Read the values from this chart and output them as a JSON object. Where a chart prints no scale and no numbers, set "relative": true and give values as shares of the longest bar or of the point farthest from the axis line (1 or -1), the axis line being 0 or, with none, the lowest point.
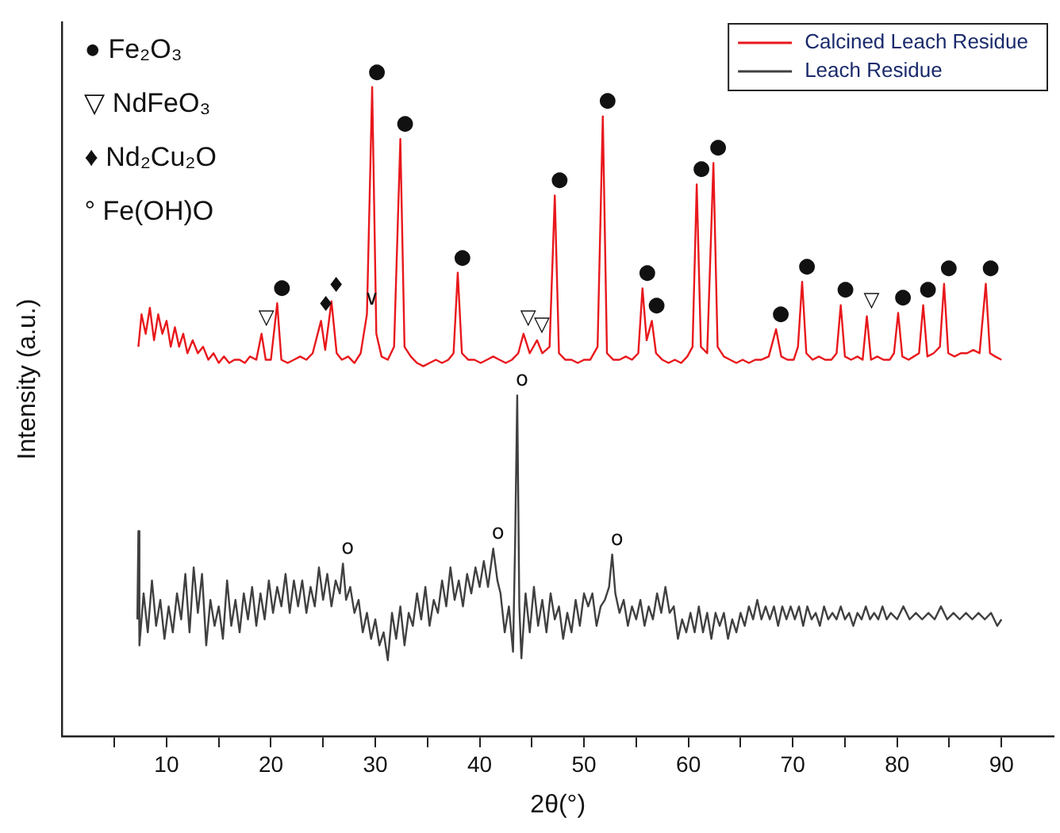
{
  "chart_data": {
    "type": "line",
    "xlabel": "2θ(°)",
    "ylabel": "Intensity (a.u.)",
    "relative": true,
    "xlim": [
      0,
      95
    ],
    "xticks": [
      {
        "value": 5,
        "label": null
      },
      10,
      {
        "value": 15,
        "label": null
      },
      20,
      {
        "value": 25,
        "label": null
      },
      30,
      {
        "value": 35,
        "label": null
      },
      40,
      {
        "value": 45,
        "label": null
      },
      50,
      {
        "value": 55,
        "label": null
      },
      60,
      {
        "value": 65,
        "label": null
      },
      70,
      {
        "value": 75,
        "label": null
      },
      80,
      {
        "value": 85,
        "label": null
      },
      90
    ],
    "legend": "top right",
    "grid": false,
    "marker": "none",
    "line_style": "solid",
    "series": [
      {
        "name": "Calcined Leach Residue",
        "color": "#e8181c",
        "x": [
          7.3,
          7.6,
          8.0,
          8.4,
          8.8,
          9.2,
          9.6,
          10.0,
          10.4,
          10.8,
          11.2,
          11.6,
          12.0,
          12.5,
          13.0,
          13.5,
          14.0,
          14.5,
          15.0,
          15.5,
          16.0,
          16.5,
          17.0,
          17.5,
          18.0,
          18.6,
          19.1,
          19.5,
          20.0,
          20.6,
          21.0,
          21.6,
          22.2,
          22.8,
          23.4,
          24.0,
          24.8,
          25.2,
          25.8,
          26.3,
          26.8,
          27.4,
          28.0,
          28.6,
          29.2,
          29.7,
          30.1,
          30.6,
          31.2,
          31.8,
          32.4,
          32.8,
          33.4,
          34.0,
          34.6,
          35.2,
          35.8,
          36.4,
          37.0,
          37.5,
          37.9,
          38.3,
          38.9,
          39.5,
          40.1,
          40.7,
          41.3,
          41.9,
          42.5,
          43.1,
          43.7,
          44.2,
          44.8,
          45.5,
          46.0,
          46.7,
          47.2,
          47.6,
          48.2,
          48.8,
          49.4,
          50.0,
          50.6,
          51.3,
          51.8,
          52.2,
          52.8,
          53.4,
          54.0,
          54.6,
          55.2,
          55.6,
          56.0,
          56.5,
          56.9,
          57.5,
          58.1,
          58.7,
          59.3,
          59.9,
          60.4,
          60.8,
          61.2,
          61.8,
          62.4,
          62.8,
          63.4,
          64.0,
          64.6,
          65.2,
          65.8,
          66.4,
          67.0,
          67.7,
          68.4,
          68.9,
          69.5,
          70.1,
          70.5,
          70.9,
          71.3,
          71.9,
          72.5,
          73.1,
          73.7,
          74.2,
          74.6,
          75.0,
          75.6,
          76.2,
          76.7,
          77.1,
          77.5,
          78.1,
          78.7,
          79.3,
          79.7,
          80.1,
          80.5,
          81.1,
          81.6,
          82.1,
          82.5,
          82.9,
          83.5,
          84.1,
          84.5,
          84.9,
          85.5,
          86.1,
          86.7,
          87.3,
          87.9,
          88.5,
          88.9,
          89.4,
          90.0
        ],
        "values": [
          0.6,
          0.65,
          0.62,
          0.66,
          0.61,
          0.65,
          0.62,
          0.64,
          0.6,
          0.63,
          0.6,
          0.62,
          0.59,
          0.61,
          0.59,
          0.6,
          0.58,
          0.59,
          0.575,
          0.585,
          0.575,
          0.58,
          0.58,
          0.575,
          0.585,
          0.58,
          0.62,
          0.58,
          0.58,
          0.667,
          0.58,
          0.575,
          0.58,
          0.585,
          0.58,
          0.59,
          0.64,
          0.595,
          0.67,
          0.59,
          0.58,
          0.585,
          0.575,
          0.59,
          0.65,
          1.0,
          0.62,
          0.585,
          0.58,
          0.6,
          0.92,
          0.6,
          0.585,
          0.575,
          0.57,
          0.575,
          0.58,
          0.575,
          0.58,
          0.59,
          0.714,
          0.59,
          0.58,
          0.58,
          0.575,
          0.58,
          0.585,
          0.58,
          0.575,
          0.58,
          0.59,
          0.62,
          0.59,
          0.61,
          0.59,
          0.6,
          0.833,
          0.59,
          0.58,
          0.58,
          0.575,
          0.58,
          0.58,
          0.6,
          0.955,
          0.59,
          0.58,
          0.58,
          0.585,
          0.58,
          0.59,
          0.69,
          0.61,
          0.64,
          0.59,
          0.58,
          0.575,
          0.58,
          0.575,
          0.585,
          0.6,
          0.85,
          0.6,
          0.59,
          0.883,
          0.6,
          0.585,
          0.58,
          0.575,
          0.58,
          0.575,
          0.58,
          0.58,
          0.585,
          0.627,
          0.585,
          0.58,
          0.58,
          0.6,
          0.7,
          0.59,
          0.58,
          0.585,
          0.58,
          0.58,
          0.59,
          0.664,
          0.585,
          0.58,
          0.585,
          0.58,
          0.647,
          0.58,
          0.585,
          0.58,
          0.58,
          0.59,
          0.652,
          0.585,
          0.58,
          0.585,
          0.59,
          0.664,
          0.585,
          0.59,
          0.6,
          0.697,
          0.59,
          0.585,
          0.59,
          0.59,
          0.595,
          0.59,
          0.697,
          0.59,
          0.585,
          0.58
        ]
      },
      {
        "name": "Leach Residue",
        "color": "#404040",
        "x": [
          7.2,
          7.3,
          7.4,
          7.8,
          8.2,
          8.6,
          9.0,
          9.4,
          9.8,
          10.2,
          10.6,
          11.0,
          11.4,
          11.8,
          12.2,
          12.6,
          13.0,
          13.4,
          13.8,
          14.2,
          14.6,
          15.0,
          15.4,
          15.8,
          16.2,
          16.6,
          17.0,
          17.4,
          17.8,
          18.2,
          18.6,
          19.0,
          19.4,
          19.8,
          20.2,
          20.6,
          21.0,
          21.4,
          21.8,
          22.2,
          22.6,
          23.0,
          23.4,
          23.8,
          24.2,
          24.6,
          25.0,
          25.4,
          25.8,
          26.2,
          26.6,
          26.9,
          27.2,
          27.6,
          28.0,
          28.4,
          28.8,
          29.2,
          29.6,
          30.0,
          30.4,
          30.8,
          31.2,
          31.6,
          32.0,
          32.4,
          32.8,
          33.2,
          33.6,
          34.0,
          34.4,
          34.8,
          35.2,
          35.6,
          36.0,
          36.4,
          36.8,
          37.2,
          37.6,
          38.0,
          38.4,
          38.8,
          39.2,
          39.6,
          40.0,
          40.4,
          40.8,
          41.3,
          41.7,
          42.0,
          42.4,
          42.8,
          43.2,
          43.4,
          43.6,
          43.8,
          44.0,
          44.4,
          44.8,
          45.2,
          45.6,
          46.0,
          46.4,
          46.8,
          47.2,
          47.6,
          48.0,
          48.4,
          48.8,
          49.2,
          49.6,
          50.0,
          50.4,
          50.8,
          51.2,
          51.6,
          52.0,
          52.4,
          52.7,
          53.0,
          53.4,
          53.8,
          54.2,
          54.6,
          55.0,
          55.4,
          55.8,
          56.2,
          56.6,
          57.0,
          57.4,
          57.8,
          58.2,
          58.6,
          59.0,
          59.4,
          59.8,
          60.2,
          60.6,
          61.0,
          61.4,
          61.8,
          62.2,
          62.6,
          63.0,
          63.4,
          63.8,
          64.2,
          64.6,
          65.0,
          65.4,
          65.8,
          66.2,
          66.6,
          67.0,
          67.4,
          67.8,
          68.2,
          68.6,
          69.0,
          69.4,
          69.8,
          70.2,
          70.6,
          71.0,
          71.4,
          71.8,
          72.2,
          72.6,
          73.0,
          73.4,
          73.8,
          74.2,
          74.6,
          75.0,
          75.4,
          75.8,
          76.2,
          76.6,
          77.0,
          77.4,
          77.8,
          78.2,
          78.6,
          79.0,
          79.4,
          80.0,
          80.6,
          81.2,
          81.8,
          82.4,
          83.0,
          83.6,
          84.2,
          84.8,
          85.4,
          86.0,
          86.6,
          87.2,
          87.8,
          88.4,
          89.0,
          89.6,
          90.0
        ],
        "values": [
          0.18,
          0.316,
          0.14,
          0.22,
          0.16,
          0.24,
          0.17,
          0.21,
          0.15,
          0.2,
          0.16,
          0.22,
          0.18,
          0.25,
          0.16,
          0.26,
          0.19,
          0.25,
          0.14,
          0.21,
          0.17,
          0.2,
          0.15,
          0.24,
          0.17,
          0.21,
          0.16,
          0.22,
          0.18,
          0.23,
          0.17,
          0.22,
          0.18,
          0.24,
          0.19,
          0.23,
          0.2,
          0.25,
          0.19,
          0.24,
          0.2,
          0.24,
          0.19,
          0.23,
          0.2,
          0.26,
          0.21,
          0.25,
          0.2,
          0.24,
          0.22,
          0.266,
          0.21,
          0.23,
          0.19,
          0.21,
          0.16,
          0.19,
          0.15,
          0.18,
          0.14,
          0.16,
          0.117,
          0.19,
          0.15,
          0.2,
          0.14,
          0.19,
          0.17,
          0.22,
          0.18,
          0.23,
          0.17,
          0.21,
          0.19,
          0.24,
          0.2,
          0.26,
          0.21,
          0.24,
          0.2,
          0.25,
          0.22,
          0.26,
          0.23,
          0.27,
          0.23,
          0.289,
          0.24,
          0.22,
          0.16,
          0.2,
          0.13,
          0.3,
          0.525,
          0.2,
          0.12,
          0.22,
          0.16,
          0.23,
          0.17,
          0.21,
          0.16,
          0.22,
          0.18,
          0.2,
          0.15,
          0.19,
          0.16,
          0.21,
          0.17,
          0.22,
          0.2,
          0.22,
          0.17,
          0.2,
          0.21,
          0.23,
          0.28,
          0.22,
          0.19,
          0.21,
          0.17,
          0.2,
          0.18,
          0.21,
          0.17,
          0.2,
          0.18,
          0.22,
          0.19,
          0.23,
          0.19,
          0.2,
          0.15,
          0.18,
          0.16,
          0.19,
          0.16,
          0.2,
          0.16,
          0.19,
          0.15,
          0.19,
          0.17,
          0.19,
          0.15,
          0.18,
          0.16,
          0.19,
          0.17,
          0.2,
          0.18,
          0.21,
          0.18,
          0.2,
          0.18,
          0.2,
          0.17,
          0.2,
          0.18,
          0.2,
          0.18,
          0.2,
          0.17,
          0.2,
          0.18,
          0.19,
          0.17,
          0.2,
          0.18,
          0.19,
          0.18,
          0.2,
          0.18,
          0.19,
          0.17,
          0.19,
          0.18,
          0.2,
          0.18,
          0.19,
          0.18,
          0.2,
          0.18,
          0.19,
          0.18,
          0.2,
          0.18,
          0.19,
          0.18,
          0.19,
          0.18,
          0.2,
          0.18,
          0.19,
          0.18,
          0.19,
          0.18,
          0.19,
          0.18,
          0.19,
          0.17,
          0.18
        ]
      }
    ],
    "annotations": [
      "● Fe₂O₃",
      "▽ NdFeO₃",
      "♦ Nd₂Cu₂O",
      "° Fe(OH)O",
      {
        "text": "▽",
        "x": 19.1,
        "y": 0.62
      },
      {
        "text": "●",
        "x": 20.6,
        "y": 0.667
      },
      {
        "text": "♦",
        "x": 24.8,
        "y": 0.64
      },
      {
        "text": "♦",
        "x": 25.8,
        "y": 0.67
      },
      {
        "text": "∨",
        "x": 29.2,
        "y": 0.65
      },
      {
        "text": "●",
        "x": 29.7,
        "y": 1.0
      },
      {
        "text": "●",
        "x": 32.4,
        "y": 0.92
      },
      {
        "text": "●",
        "x": 37.9,
        "y": 0.714
      },
      {
        "text": "▽",
        "x": 44.2,
        "y": 0.62
      },
      {
        "text": "▽",
        "x": 45.5,
        "y": 0.61
      },
      {
        "text": "●",
        "x": 47.2,
        "y": 0.833
      },
      {
        "text": "●",
        "x": 51.8,
        "y": 0.955
      },
      {
        "text": "●",
        "x": 55.6,
        "y": 0.69
      },
      {
        "text": "●",
        "x": 56.5,
        "y": 0.64
      },
      {
        "text": "●",
        "x": 60.8,
        "y": 0.85
      },
      {
        "text": "●",
        "x": 62.4,
        "y": 0.883
      },
      {
        "text": "●",
        "x": 68.4,
        "y": 0.627
      },
      {
        "text": "●",
        "x": 70.9,
        "y": 0.7
      },
      {
        "text": "●",
        "x": 74.6,
        "y": 0.664
      },
      {
        "text": "▽",
        "x": 77.1,
        "y": 0.647
      },
      {
        "text": "●",
        "x": 80.1,
        "y": 0.652
      },
      {
        "text": "●",
        "x": 82.5,
        "y": 0.664
      },
      {
        "text": "●",
        "x": 84.5,
        "y": 0.697
      },
      {
        "text": "●",
        "x": 88.5,
        "y": 0.697
      },
      {
        "text": "o",
        "x": 26.9,
        "y": 0.266
      },
      {
        "text": "o",
        "x": 41.3,
        "y": 0.289
      },
      {
        "text": "o",
        "x": 43.6,
        "y": 0.525
      },
      {
        "text": "o",
        "x": 52.7,
        "y": 0.28
      }
    ]
  }
}
